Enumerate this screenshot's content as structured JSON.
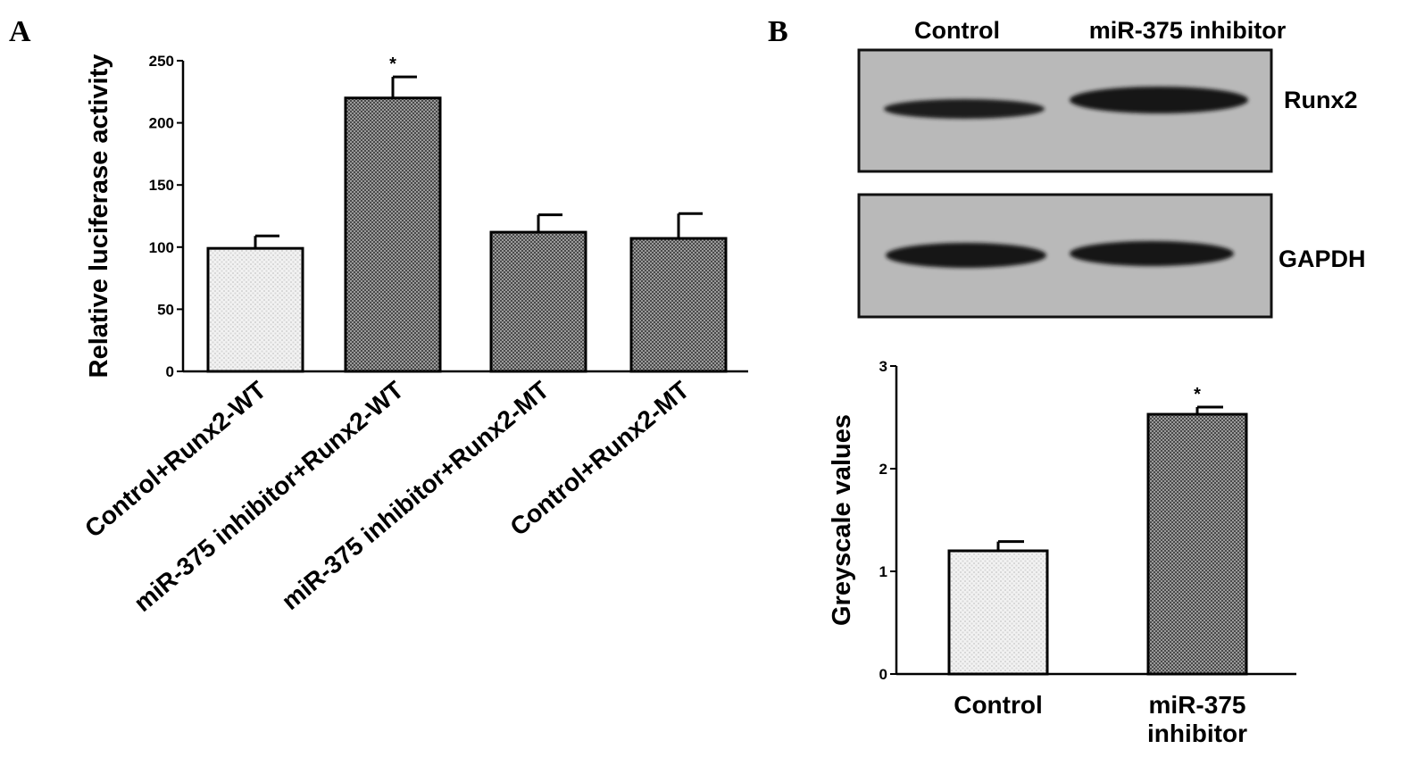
{
  "panels": {
    "a_letter": "A",
    "b_letter": "B"
  },
  "blot": {
    "lanes": [
      "Control",
      "miR-375 inhibitor"
    ],
    "rows": [
      "Runx2",
      "GAPDH"
    ]
  },
  "colors": {
    "light_bar": "#eeeeee",
    "dark_bar": "#777777",
    "blot_background": "#b9b9b9",
    "band": "#1a1a1a"
  },
  "chart_data": [
    {
      "type": "bar",
      "title": "",
      "categories": [
        "Control+Runx2-WT",
        "miR-375 inhibitor+Runx2-WT",
        "miR-375 inhibitor+Runx2-MT",
        "Control+Runx2-MT"
      ],
      "values": [
        99,
        220,
        112,
        107
      ],
      "errors": [
        10,
        17,
        14,
        20
      ],
      "significance": [
        "",
        "*",
        "",
        ""
      ],
      "bar_fill": [
        "light",
        "dark",
        "dark",
        "dark"
      ],
      "xlabel": "",
      "ylabel": "Relative luciferase activity",
      "ylim": [
        0,
        250
      ],
      "yticks": [
        0,
        50,
        100,
        150,
        200,
        250
      ],
      "grid": false
    },
    {
      "type": "bar",
      "title": "",
      "categories": [
        "Control",
        "miR-375 inhibitor"
      ],
      "category_lines": [
        [
          "Control"
        ],
        [
          "miR-375",
          "inhibitor"
        ]
      ],
      "values": [
        1.2,
        2.53
      ],
      "errors": [
        0.09,
        0.07
      ],
      "significance": [
        "",
        "*"
      ],
      "bar_fill": [
        "light",
        "dark"
      ],
      "xlabel": "",
      "ylabel": "Greyscale values",
      "ylim": [
        0,
        3
      ],
      "yticks": [
        0,
        1,
        2,
        3
      ],
      "grid": false
    }
  ]
}
